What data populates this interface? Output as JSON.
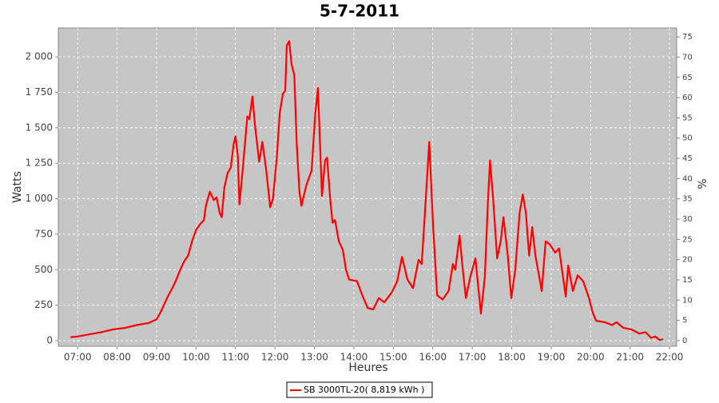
{
  "chart_data": {
    "type": "line",
    "title": "5-7-2011",
    "x_label": "Heures",
    "y_label": "Watts",
    "y2_label": "%",
    "x": [
      6.82,
      7.0,
      7.3,
      7.6,
      7.9,
      8.2,
      8.5,
      8.8,
      9.0,
      9.1,
      9.2,
      9.3,
      9.4,
      9.5,
      9.6,
      9.7,
      9.8,
      9.9,
      10.0,
      10.1,
      10.2,
      10.25,
      10.35,
      10.45,
      10.52,
      10.6,
      10.65,
      10.72,
      10.8,
      10.88,
      10.95,
      11.0,
      11.06,
      11.1,
      11.18,
      11.3,
      11.35,
      11.43,
      11.5,
      11.6,
      11.68,
      11.78,
      11.88,
      11.95,
      12.05,
      12.12,
      12.2,
      12.26,
      12.3,
      12.36,
      12.42,
      12.49,
      12.55,
      12.62,
      12.67,
      12.8,
      12.93,
      13.02,
      13.09,
      13.14,
      13.19,
      13.27,
      13.32,
      13.4,
      13.46,
      13.52,
      13.62,
      13.72,
      13.8,
      13.88,
      14.08,
      14.2,
      14.35,
      14.49,
      14.63,
      14.77,
      14.96,
      15.1,
      15.22,
      15.36,
      15.5,
      15.64,
      15.72,
      15.8,
      15.91,
      16.01,
      16.11,
      16.25,
      16.4,
      16.51,
      16.57,
      16.68,
      16.76,
      16.84,
      16.95,
      17.08,
      17.22,
      17.32,
      17.4,
      17.45,
      17.53,
      17.63,
      17.72,
      17.79,
      17.9,
      17.99,
      18.09,
      18.2,
      18.28,
      18.36,
      18.44,
      18.52,
      18.6,
      18.76,
      18.86,
      18.96,
      19.1,
      19.2,
      19.3,
      19.37,
      19.43,
      19.55,
      19.67,
      19.81,
      19.96,
      20.05,
      20.14,
      20.36,
      20.54,
      20.66,
      20.83,
      21.03,
      21.23,
      21.39,
      21.53,
      21.64,
      21.74,
      21.84
    ],
    "series": [
      {
        "name": "SB 3000TL-20( 8,819 kWh )",
        "color": "#ff0000",
        "values": [
          25,
          30,
          45,
          60,
          80,
          90,
          110,
          125,
          150,
          200,
          260,
          320,
          370,
          430,
          500,
          560,
          600,
          700,
          780,
          820,
          850,
          950,
          1050,
          990,
          1010,
          900,
          870,
          1080,
          1180,
          1220,
          1380,
          1440,
          1300,
          960,
          1200,
          1580,
          1560,
          1720,
          1500,
          1260,
          1400,
          1200,
          940,
          1000,
          1300,
          1600,
          1740,
          1760,
          2080,
          2110,
          1950,
          1870,
          1400,
          1050,
          950,
          1100,
          1200,
          1600,
          1780,
          1400,
          1020,
          1270,
          1290,
          1000,
          830,
          850,
          700,
          640,
          500,
          430,
          420,
          330,
          230,
          220,
          300,
          270,
          340,
          420,
          590,
          430,
          370,
          570,
          540,
          900,
          1400,
          800,
          320,
          290,
          350,
          540,
          500,
          740,
          500,
          300,
          450,
          580,
          190,
          450,
          1000,
          1270,
          1000,
          580,
          700,
          870,
          600,
          300,
          500,
          900,
          1030,
          900,
          600,
          800,
          600,
          350,
          700,
          680,
          620,
          650,
          450,
          310,
          530,
          350,
          460,
          420,
          300,
          200,
          140,
          130,
          110,
          130,
          90,
          80,
          50,
          60,
          20,
          30,
          5,
          10
        ]
      }
    ],
    "xlim": [
      6.51,
      22.18
    ],
    "xticks": [
      {
        "value": 7,
        "label": "07:00"
      },
      {
        "value": 8,
        "label": "08:00"
      },
      {
        "value": 9,
        "label": "09:00"
      },
      {
        "value": 10,
        "label": "10:00"
      },
      {
        "value": 11,
        "label": "11:00"
      },
      {
        "value": 12,
        "label": "12:00"
      },
      {
        "value": 13,
        "label": "13:00"
      },
      {
        "value": 14,
        "label": "14:00"
      },
      {
        "value": 15,
        "label": "15:00"
      },
      {
        "value": 16,
        "label": "16:00"
      },
      {
        "value": 17,
        "label": "17:00"
      },
      {
        "value": 18,
        "label": "18:00"
      },
      {
        "value": 19,
        "label": "19:00"
      },
      {
        "value": 20,
        "label": "20:00"
      },
      {
        "value": 21,
        "label": "21:00"
      },
      {
        "value": 22,
        "label": "22:00"
      }
    ],
    "ylim": [
      -39,
      2203
    ],
    "yticks": [
      0,
      250,
      500,
      750,
      {
        "value": 1000,
        "label": "1 000"
      },
      {
        "value": 1250,
        "label": "1 250"
      },
      {
        "value": 1500,
        "label": "1 500"
      },
      {
        "value": 1750,
        "label": "1 750"
      },
      {
        "value": 2000,
        "label": "2 000"
      }
    ],
    "y2lim": [
      -1.4,
      77.2
    ],
    "y2ticks": [
      0,
      5,
      10,
      15,
      20,
      25,
      30,
      35,
      40,
      45,
      50,
      55,
      60,
      65,
      70,
      75
    ],
    "grid": true,
    "legend": "bottom"
  }
}
